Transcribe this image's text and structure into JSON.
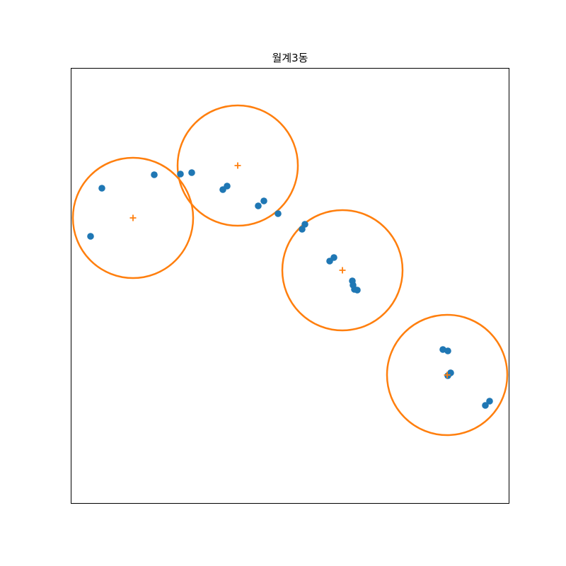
{
  "chart_data": {
    "type": "scatter",
    "title": "월계3동",
    "xlabel": "",
    "ylabel": "",
    "xlim": [
      0,
      620
    ],
    "ylim": [
      0,
      616
    ],
    "grid": false,
    "ticks": false,
    "colors": {
      "points": "#1f77b4",
      "centers": "#ff7f0e",
      "circles": "#ff7f0e"
    },
    "series": [
      {
        "kind": "points",
        "values": [
          {
            "x": 28,
            "y": 378
          },
          {
            "x": 44,
            "y": 446
          },
          {
            "x": 118,
            "y": 465
          },
          {
            "x": 155,
            "y": 466
          },
          {
            "x": 171,
            "y": 468
          },
          {
            "x": 215,
            "y": 444
          },
          {
            "x": 221,
            "y": 449
          },
          {
            "x": 265,
            "y": 421
          },
          {
            "x": 273,
            "y": 428
          },
          {
            "x": 293,
            "y": 410
          },
          {
            "x": 327,
            "y": 388
          },
          {
            "x": 331,
            "y": 395
          },
          {
            "x": 366,
            "y": 343
          },
          {
            "x": 372,
            "y": 348
          },
          {
            "x": 398,
            "y": 315
          },
          {
            "x": 399,
            "y": 309
          },
          {
            "x": 401,
            "y": 303
          },
          {
            "x": 405,
            "y": 302
          },
          {
            "x": 526,
            "y": 218
          },
          {
            "x": 533,
            "y": 216
          },
          {
            "x": 533,
            "y": 181
          },
          {
            "x": 537,
            "y": 185
          },
          {
            "x": 586,
            "y": 139
          },
          {
            "x": 592,
            "y": 145
          }
        ]
      },
      {
        "kind": "centers",
        "values": [
          {
            "x": 88,
            "y": 404
          },
          {
            "x": 236,
            "y": 478
          },
          {
            "x": 384,
            "y": 330
          },
          {
            "x": 532,
            "y": 182
          }
        ]
      },
      {
        "kind": "circles",
        "radius": 85,
        "values": [
          {
            "x": 88,
            "y": 404
          },
          {
            "x": 236,
            "y": 478
          },
          {
            "x": 384,
            "y": 330
          },
          {
            "x": 532,
            "y": 182
          }
        ]
      }
    ]
  }
}
